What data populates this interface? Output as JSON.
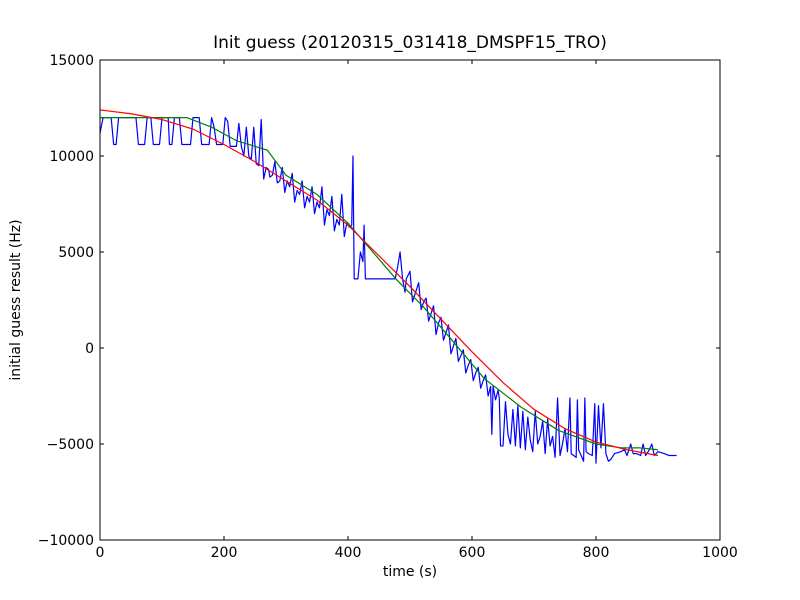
{
  "chart_data": {
    "type": "line",
    "title": "Init guess (20120315_031418_DMSPF15_TRO)",
    "xlabel": "time (s)",
    "ylabel": "initial guess result (Hz)",
    "xlim": [
      0,
      1000
    ],
    "ylim": [
      -10000,
      15000
    ],
    "xticks": [
      0,
      200,
      400,
      600,
      800,
      1000
    ],
    "yticks": [
      -10000,
      -5000,
      0,
      5000,
      10000,
      15000
    ],
    "xtick_labels": [
      "0",
      "200",
      "400",
      "600",
      "800",
      "1000"
    ],
    "ytick_labels": [
      "−10000",
      "−5000",
      "0",
      "5000",
      "10000",
      "15000"
    ],
    "grid": false,
    "legend": "none",
    "series": [
      {
        "color": "#0000ff",
        "style": "raw",
        "points": [
          [
            0,
            11200
          ],
          [
            5,
            12000
          ],
          [
            18,
            12000
          ],
          [
            22,
            10600
          ],
          [
            26,
            10600
          ],
          [
            30,
            12000
          ],
          [
            58,
            12000
          ],
          [
            62,
            10600
          ],
          [
            72,
            10600
          ],
          [
            76,
            12000
          ],
          [
            82,
            12000
          ],
          [
            86,
            10600
          ],
          [
            96,
            10600
          ],
          [
            100,
            12000
          ],
          [
            110,
            12000
          ],
          [
            112,
            10600
          ],
          [
            116,
            10600
          ],
          [
            120,
            12000
          ],
          [
            128,
            12000
          ],
          [
            132,
            10600
          ],
          [
            146,
            10600
          ],
          [
            150,
            12000
          ],
          [
            160,
            12000
          ],
          [
            164,
            10600
          ],
          [
            176,
            10600
          ],
          [
            180,
            12000
          ],
          [
            184,
            11500
          ],
          [
            188,
            10600
          ],
          [
            198,
            10600
          ],
          [
            202,
            12000
          ],
          [
            206,
            11800
          ],
          [
            210,
            10500
          ],
          [
            220,
            10500
          ],
          [
            224,
            11700
          ],
          [
            228,
            10500
          ],
          [
            232,
            10000
          ],
          [
            236,
            11500
          ],
          [
            240,
            10000
          ],
          [
            244,
            9800
          ],
          [
            248,
            11500
          ],
          [
            252,
            9600
          ],
          [
            256,
            9500
          ],
          [
            260,
            11900
          ],
          [
            264,
            8800
          ],
          [
            268,
            9400
          ],
          [
            272,
            9300
          ],
          [
            274,
            8900
          ],
          [
            278,
            9000
          ],
          [
            282,
            9700
          ],
          [
            286,
            8600
          ],
          [
            290,
            8700
          ],
          [
            294,
            9400
          ],
          [
            298,
            8100
          ],
          [
            302,
            8700
          ],
          [
            306,
            8400
          ],
          [
            310,
            9100
          ],
          [
            314,
            7600
          ],
          [
            318,
            8200
          ],
          [
            322,
            8000
          ],
          [
            326,
            8700
          ],
          [
            330,
            7300
          ],
          [
            334,
            7900
          ],
          [
            338,
            7600
          ],
          [
            342,
            8400
          ],
          [
            346,
            7000
          ],
          [
            350,
            7600
          ],
          [
            354,
            7300
          ],
          [
            358,
            8400
          ],
          [
            362,
            6400
          ],
          [
            366,
            7200
          ],
          [
            370,
            6900
          ],
          [
            374,
            7900
          ],
          [
            378,
            6100
          ],
          [
            382,
            6700
          ],
          [
            386,
            6400
          ],
          [
            390,
            8000
          ],
          [
            394,
            5800
          ],
          [
            398,
            6500
          ],
          [
            402,
            6300
          ],
          [
            406,
            6400
          ],
          [
            408,
            10000
          ],
          [
            410,
            3600
          ],
          [
            416,
            3600
          ],
          [
            420,
            5000
          ],
          [
            424,
            4500
          ],
          [
            426,
            6400
          ],
          [
            428,
            3600
          ],
          [
            476,
            3600
          ],
          [
            480,
            4200
          ],
          [
            484,
            5000
          ],
          [
            488,
            3600
          ],
          [
            492,
            2900
          ],
          [
            494,
            3600
          ],
          [
            500,
            4000
          ],
          [
            504,
            2400
          ],
          [
            510,
            3000
          ],
          [
            514,
            3400
          ],
          [
            518,
            2000
          ],
          [
            522,
            2400
          ],
          [
            526,
            2600
          ],
          [
            530,
            1400
          ],
          [
            534,
            1800
          ],
          [
            538,
            2200
          ],
          [
            542,
            700
          ],
          [
            546,
            1300
          ],
          [
            550,
            1600
          ],
          [
            554,
            400
          ],
          [
            558,
            800
          ],
          [
            562,
            1200
          ],
          [
            566,
            -300
          ],
          [
            570,
            100
          ],
          [
            574,
            500
          ],
          [
            578,
            -700
          ],
          [
            582,
            -400
          ],
          [
            586,
            -100
          ],
          [
            590,
            -1300
          ],
          [
            594,
            -900
          ],
          [
            598,
            -600
          ],
          [
            602,
            -1700
          ],
          [
            606,
            -1300
          ],
          [
            610,
            -1000
          ],
          [
            614,
            -2100
          ],
          [
            618,
            -1700
          ],
          [
            622,
            -1400
          ],
          [
            626,
            -2500
          ],
          [
            630,
            -2000
          ],
          [
            632,
            -4500
          ],
          [
            634,
            -2000
          ],
          [
            638,
            -2700
          ],
          [
            642,
            -2200
          ],
          [
            644,
            -2600
          ],
          [
            646,
            -5100
          ],
          [
            650,
            -5100
          ],
          [
            654,
            -2800
          ],
          [
            658,
            -4500
          ],
          [
            662,
            -5000
          ],
          [
            666,
            -3200
          ],
          [
            670,
            -5100
          ],
          [
            674,
            -3000
          ],
          [
            678,
            -5200
          ],
          [
            682,
            -3300
          ],
          [
            686,
            -5300
          ],
          [
            690,
            -3600
          ],
          [
            694,
            -4800
          ],
          [
            698,
            -5400
          ],
          [
            702,
            -3300
          ],
          [
            706,
            -5000
          ],
          [
            710,
            -4600
          ],
          [
            714,
            -3800
          ],
          [
            718,
            -5500
          ],
          [
            722,
            -3700
          ],
          [
            726,
            -5100
          ],
          [
            730,
            -4600
          ],
          [
            734,
            -5700
          ],
          [
            738,
            -2600
          ],
          [
            742,
            -5600
          ],
          [
            746,
            -5000
          ],
          [
            750,
            -4200
          ],
          [
            754,
            -5400
          ],
          [
            758,
            -2600
          ],
          [
            760,
            -5500
          ],
          [
            764,
            -5600
          ],
          [
            768,
            -5700
          ],
          [
            770,
            -2700
          ],
          [
            772,
            -5300
          ],
          [
            776,
            -5600
          ],
          [
            780,
            -5900
          ],
          [
            782,
            -2600
          ],
          [
            784,
            -5400
          ],
          [
            788,
            -5500
          ],
          [
            794,
            -5600
          ],
          [
            798,
            -2900
          ],
          [
            800,
            -6000
          ],
          [
            804,
            -3000
          ],
          [
            808,
            -5200
          ],
          [
            812,
            -2900
          ],
          [
            816,
            -5500
          ],
          [
            820,
            -5900
          ],
          [
            824,
            -5800
          ],
          [
            830,
            -5500
          ],
          [
            840,
            -5400
          ],
          [
            846,
            -5300
          ],
          [
            850,
            -5600
          ],
          [
            856,
            -5000
          ],
          [
            860,
            -5500
          ],
          [
            866,
            -5500
          ],
          [
            872,
            -5600
          ],
          [
            876,
            -5000
          ],
          [
            880,
            -5600
          ],
          [
            886,
            -5300
          ],
          [
            890,
            -5000
          ],
          [
            894,
            -5600
          ],
          [
            900,
            -5400
          ],
          [
            910,
            -5500
          ],
          [
            918,
            -5600
          ],
          [
            930,
            -5600
          ]
        ]
      },
      {
        "color": "#008000",
        "style": "smoothed",
        "points": [
          [
            0,
            12000
          ],
          [
            60,
            12000
          ],
          [
            140,
            12000
          ],
          [
            180,
            11500
          ],
          [
            220,
            10800
          ],
          [
            270,
            10300
          ],
          [
            300,
            9000
          ],
          [
            350,
            8000
          ],
          [
            400,
            6500
          ],
          [
            480,
            3500
          ],
          [
            520,
            2200
          ],
          [
            560,
            700
          ],
          [
            620,
            -1600
          ],
          [
            680,
            -3100
          ],
          [
            740,
            -4300
          ],
          [
            800,
            -5000
          ],
          [
            840,
            -5200
          ],
          [
            870,
            -5200
          ],
          [
            900,
            -5300
          ]
        ]
      },
      {
        "color": "#ff0000",
        "style": "fit",
        "points": [
          [
            0,
            12400
          ],
          [
            50,
            12200
          ],
          [
            100,
            11900
          ],
          [
            150,
            11400
          ],
          [
            200,
            10600
          ],
          [
            250,
            9700
          ],
          [
            300,
            8700
          ],
          [
            350,
            7700
          ],
          [
            400,
            6400
          ],
          [
            450,
            4800
          ],
          [
            500,
            3200
          ],
          [
            550,
            1500
          ],
          [
            600,
            -200
          ],
          [
            650,
            -1800
          ],
          [
            700,
            -3200
          ],
          [
            750,
            -4200
          ],
          [
            800,
            -4900
          ],
          [
            850,
            -5300
          ],
          [
            900,
            -5600
          ]
        ]
      }
    ]
  }
}
